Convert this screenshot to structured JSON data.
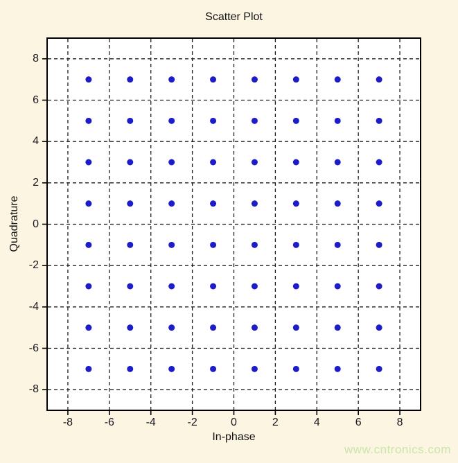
{
  "page": {
    "background": "#fcf5e2",
    "watermark": {
      "text": "www.cntronics.com",
      "color": "#c9e6aa"
    }
  },
  "chart_data": {
    "type": "scatter",
    "title": "Scatter Plot",
    "xlabel": "In-phase",
    "ylabel": "Quadrature",
    "xlim": [
      -9,
      9
    ],
    "ylim": [
      -9,
      9
    ],
    "xticks": [
      -8,
      -6,
      -4,
      -2,
      0,
      2,
      4,
      6,
      8
    ],
    "yticks": [
      -8,
      -6,
      -4,
      -2,
      0,
      2,
      4,
      6,
      8
    ],
    "grid": "dashed-at-every-tick",
    "legend": "none",
    "plot_bg": "#ffffff",
    "axis_color": "#000000",
    "grid_color": "#1d1d1d",
    "marker": {
      "shape": "dot",
      "color": "#1c1cc9",
      "radius_px": 4.5
    },
    "description": "64-QAM constellation: 8x8 grid of points at odd in-phase/quadrature values",
    "points": [
      [
        -7,
        7
      ],
      [
        -5,
        7
      ],
      [
        -3,
        7
      ],
      [
        -1,
        7
      ],
      [
        1,
        7
      ],
      [
        3,
        7
      ],
      [
        5,
        7
      ],
      [
        7,
        7
      ],
      [
        -7,
        5
      ],
      [
        -5,
        5
      ],
      [
        -3,
        5
      ],
      [
        -1,
        5
      ],
      [
        1,
        5
      ],
      [
        3,
        5
      ],
      [
        5,
        5
      ],
      [
        7,
        5
      ],
      [
        -7,
        3
      ],
      [
        -5,
        3
      ],
      [
        -3,
        3
      ],
      [
        -1,
        3
      ],
      [
        1,
        3
      ],
      [
        3,
        3
      ],
      [
        5,
        3
      ],
      [
        7,
        3
      ],
      [
        -7,
        1
      ],
      [
        -5,
        1
      ],
      [
        -3,
        1
      ],
      [
        -1,
        1
      ],
      [
        1,
        1
      ],
      [
        3,
        1
      ],
      [
        5,
        1
      ],
      [
        7,
        1
      ],
      [
        -7,
        -1
      ],
      [
        -5,
        -1
      ],
      [
        -3,
        -1
      ],
      [
        -1,
        -1
      ],
      [
        1,
        -1
      ],
      [
        3,
        -1
      ],
      [
        5,
        -1
      ],
      [
        7,
        -1
      ],
      [
        -7,
        -3
      ],
      [
        -5,
        -3
      ],
      [
        -3,
        -3
      ],
      [
        -1,
        -3
      ],
      [
        1,
        -3
      ],
      [
        3,
        -3
      ],
      [
        5,
        -3
      ],
      [
        7,
        -3
      ],
      [
        -7,
        -5
      ],
      [
        -5,
        -5
      ],
      [
        -3,
        -5
      ],
      [
        -1,
        -5
      ],
      [
        1,
        -5
      ],
      [
        3,
        -5
      ],
      [
        5,
        -5
      ],
      [
        7,
        -5
      ],
      [
        -7,
        -7
      ],
      [
        -5,
        -7
      ],
      [
        -3,
        -7
      ],
      [
        -1,
        -7
      ],
      [
        1,
        -7
      ],
      [
        3,
        -7
      ],
      [
        5,
        -7
      ],
      [
        7,
        -7
      ]
    ]
  }
}
